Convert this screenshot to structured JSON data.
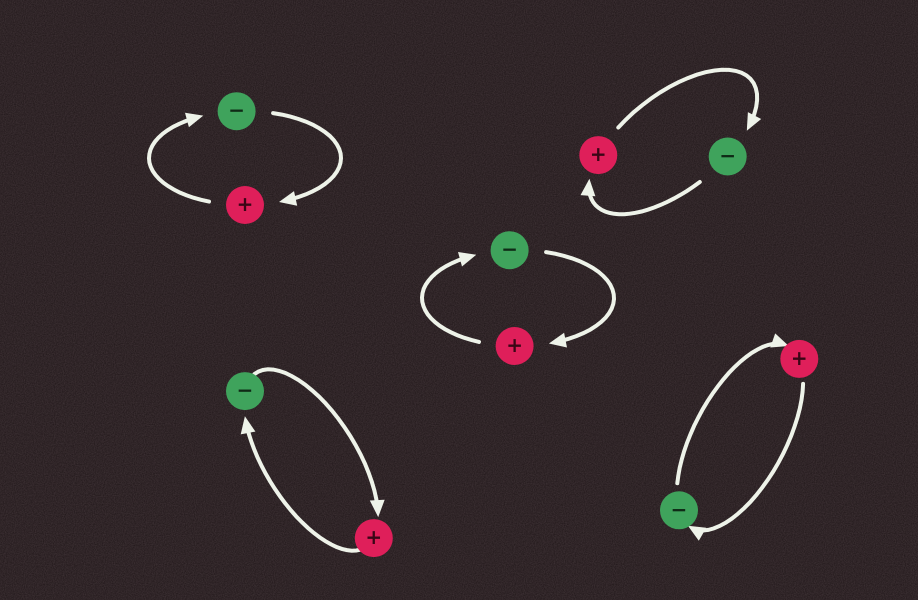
{
  "background_color": "#1d1416",
  "orbit_color": "#eef3e9",
  "charges": {
    "negative": {
      "symbol": "−",
      "color": "#3fa35c",
      "sign_color": "#0f2a16"
    },
    "positive": {
      "symbol": "+",
      "color": "#df1f5a",
      "sign_color": "#3a0616"
    }
  },
  "dipoles": [
    {
      "id": "top-left",
      "orientation": "horizontal"
    },
    {
      "id": "top-right",
      "orientation": "tilted-right"
    },
    {
      "id": "center",
      "orientation": "horizontal"
    },
    {
      "id": "bottom-left",
      "orientation": "tilted-left"
    },
    {
      "id": "bottom-right",
      "orientation": "tilted-right"
    }
  ]
}
